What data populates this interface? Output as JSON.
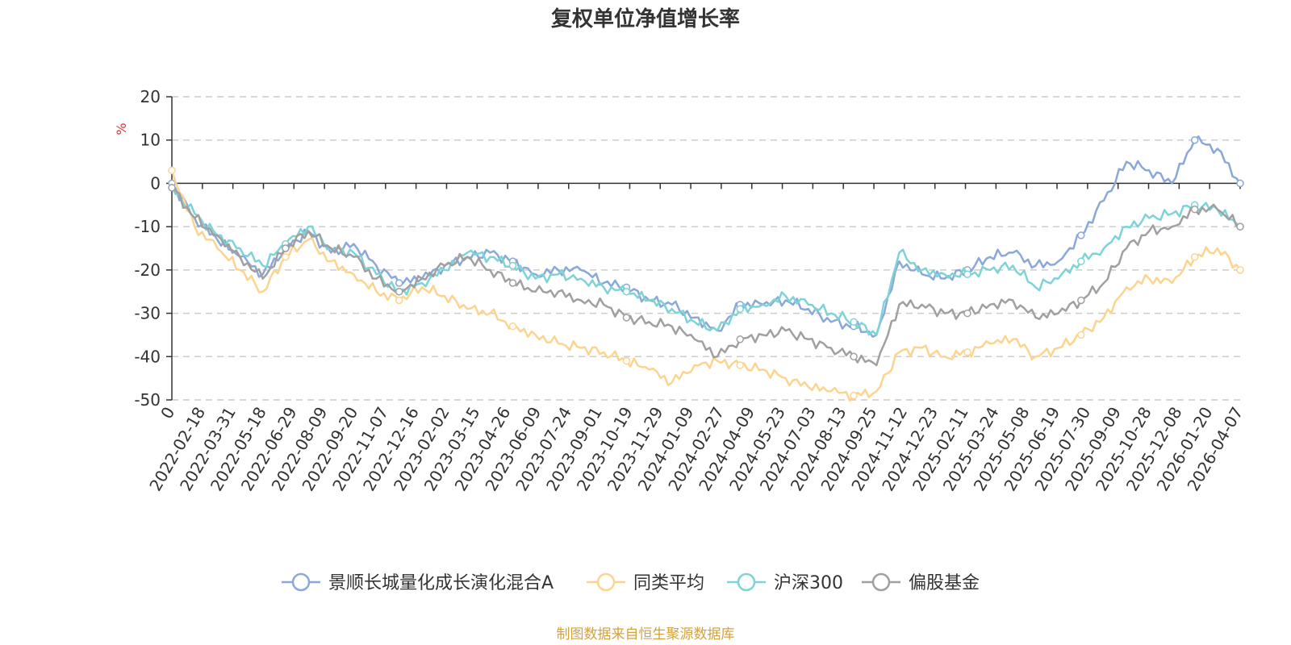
{
  "chart_data": {
    "type": "line",
    "title": "复权单位净值增长率",
    "ylabel": "%",
    "ylim": [
      -50,
      20
    ],
    "yticks": [
      20,
      10,
      0,
      -10,
      -20,
      -30,
      -40,
      -50
    ],
    "x_tick_labels": [
      "0",
      "2022-02-18",
      "2022-03-31",
      "2022-05-18",
      "2022-06-29",
      "2022-08-09",
      "2022-09-20",
      "2022-11-07",
      "2022-12-16",
      "2023-02-02",
      "2023-03-15",
      "2023-04-26",
      "2023-06-09",
      "2023-07-24",
      "2023-09-01",
      "2023-10-19",
      "2023-11-29",
      "2024-01-09",
      "2024-02-27",
      "2024-04-09",
      "2024-05-23",
      "2024-07-03",
      "2024-08-13",
      "2024-09-25",
      "2024-11-12",
      "2024-12-23",
      "2025-02-11",
      "2025-03-24",
      "2025-05-08",
      "2025-06-19",
      "2025-07-30",
      "2025-09-09",
      "2025-10-28",
      "2025-12-08",
      "2026-01-20",
      "2026-04-07"
    ],
    "grid": true,
    "legend_position": "bottom",
    "series": [
      {
        "name": "景顺长城量化成长演化混合A",
        "color": "#8aa8d8",
        "values": [
          0,
          -8,
          -13,
          -17,
          -21,
          -15,
          -11,
          -16,
          -14,
          -19,
          -23,
          -22,
          -19,
          -17,
          -16,
          -18,
          -21,
          -20,
          -20,
          -23,
          -24,
          -27,
          -28,
          -31,
          -34,
          -28,
          -28,
          -27,
          -29,
          -32,
          -33,
          -35,
          -18,
          -21,
          -22,
          -20,
          -17,
          -16,
          -19,
          -18,
          -12,
          -4,
          5,
          3,
          0,
          10,
          8,
          0
        ]
      },
      {
        "name": "同类平均",
        "color": "#fcd48f",
        "values": [
          3,
          -10,
          -15,
          -20,
          -25,
          -17,
          -13,
          -18,
          -21,
          -25,
          -27,
          -24,
          -26,
          -29,
          -30,
          -33,
          -35,
          -37,
          -38,
          -39,
          -41,
          -43,
          -46,
          -42,
          -41,
          -42,
          -43,
          -45,
          -47,
          -48,
          -49,
          -48,
          -39,
          -38,
          -40,
          -39,
          -37,
          -36,
          -40,
          -38,
          -35,
          -31,
          -24,
          -22,
          -23,
          -17,
          -15,
          -20
        ]
      },
      {
        "name": "沪深300",
        "color": "#7ed3d7",
        "values": [
          -1,
          -7,
          -12,
          -15,
          -19,
          -14,
          -10,
          -15,
          -16,
          -21,
          -25,
          -23,
          -20,
          -16,
          -17,
          -19,
          -22,
          -21,
          -22,
          -24,
          -25,
          -27,
          -29,
          -32,
          -34,
          -29,
          -28,
          -26,
          -28,
          -30,
          -32,
          -35,
          -16,
          -20,
          -21,
          -21,
          -20,
          -19,
          -24,
          -22,
          -18,
          -15,
          -10,
          -8,
          -7,
          -5,
          -6,
          -10
        ]
      },
      {
        "name": "偏股基金",
        "color": "#a0a0a0",
        "values": [
          -1,
          -8,
          -12,
          -17,
          -22,
          -15,
          -11,
          -15,
          -17,
          -22,
          -25,
          -22,
          -19,
          -17,
          -20,
          -23,
          -25,
          -25,
          -27,
          -28,
          -31,
          -32,
          -33,
          -36,
          -40,
          -36,
          -35,
          -34,
          -36,
          -38,
          -40,
          -42,
          -28,
          -28,
          -30,
          -30,
          -28,
          -27,
          -31,
          -30,
          -27,
          -23,
          -15,
          -11,
          -10,
          -6,
          -6,
          -10
        ]
      }
    ]
  },
  "colors": {
    "axis": "#333333",
    "grid": "#cccccc",
    "unit": "#e03030",
    "source": "#d4a23c"
  },
  "legend_items": [
    "景顺长城量化成长演化混合A",
    "同类平均",
    "沪深300",
    "偏股基金"
  ],
  "source_note": "制图数据来自恒生聚源数据库"
}
